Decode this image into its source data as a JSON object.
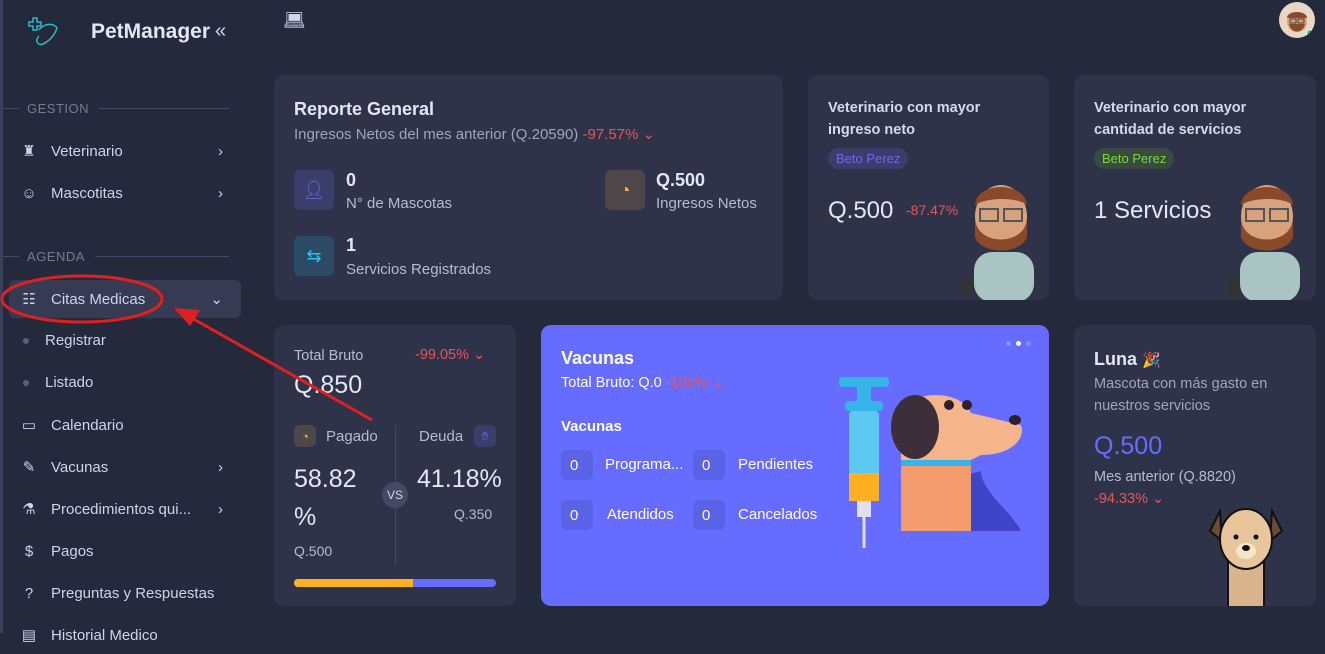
{
  "app": {
    "name": "PetManager",
    "collapse_icon": "chevrons-left-icon"
  },
  "sidebar": {
    "sections": [
      "GESTION",
      "AGENDA"
    ],
    "items": [
      {
        "label": "Veterinario",
        "icon": "vet-icon",
        "chevron": ">"
      },
      {
        "label": "Mascotitas",
        "icon": "pet-face-icon",
        "chevron": ">"
      },
      {
        "label": "Citas Medicas",
        "icon": "checklist-icon",
        "chevron": "⌄"
      },
      {
        "label": "Registrar"
      },
      {
        "label": "Listado"
      },
      {
        "label": "Calendario",
        "icon": "calendar-icon"
      },
      {
        "label": "Vacunas",
        "icon": "syringe-icon",
        "chevron": ">"
      },
      {
        "label": "Procedimientos qui...",
        "icon": "microscope-icon",
        "chevron": ">"
      },
      {
        "label": "Pagos",
        "icon": "coins-icon"
      },
      {
        "label": "Preguntas y Respuestas",
        "icon": "question-icon"
      },
      {
        "label": "Historial Medico",
        "icon": "history-icon"
      }
    ]
  },
  "report": {
    "title": "Reporte General",
    "subtitle": "Ingresos Netos del mes anterior (Q.20590)",
    "change": "-97.57%",
    "stats": [
      {
        "value": "0",
        "label": "N° de Mascotas"
      },
      {
        "value": "Q.500",
        "label": "Ingresos Netos"
      },
      {
        "value": "1",
        "label": "Servicios Registrados"
      }
    ]
  },
  "vet_income": {
    "title": "Veterinario con mayor ingreso neto",
    "name": "Beto Perez",
    "value": "Q.500",
    "change": "-87.47%"
  },
  "vet_services": {
    "title": "Veterinario con mayor cantidad de servicios",
    "name": "Beto Perez",
    "value": "1 Servicios"
  },
  "gross": {
    "label": "Total Bruto",
    "change": "-99.05%",
    "value": "Q.850",
    "paid_label": "Pagado",
    "paid_pct": "58.82 %",
    "paid_amount": "Q.500",
    "debt_label": "Deuda",
    "debt_pct": "41.18%",
    "debt_amount": "Q.350",
    "vs": "VS",
    "paid_fraction": 0.5882
  },
  "vaccines": {
    "title": "Vacunas",
    "total": "Total Bruto: Q.0",
    "change": "-100%",
    "section": "Vacunas",
    "items": [
      {
        "value": "0",
        "label": "Programa..."
      },
      {
        "value": "0",
        "label": "Pendientes"
      },
      {
        "value": "0",
        "label": "Atendidos"
      },
      {
        "value": "0",
        "label": "Cancelados"
      }
    ]
  },
  "pet": {
    "name": "Luna",
    "emoji": "🎉",
    "desc": "Mascota con más gasto en nuestros servicios",
    "value": "Q.500",
    "previous": "Mes anterior (Q.8820)",
    "change": "-94.33%"
  },
  "colors": {
    "primary": "#7367f0",
    "vaccine_card": "#666cff",
    "danger": "#ea5455",
    "warning": "#ffb020",
    "success": "#72e128",
    "annotation": "#e02020"
  }
}
